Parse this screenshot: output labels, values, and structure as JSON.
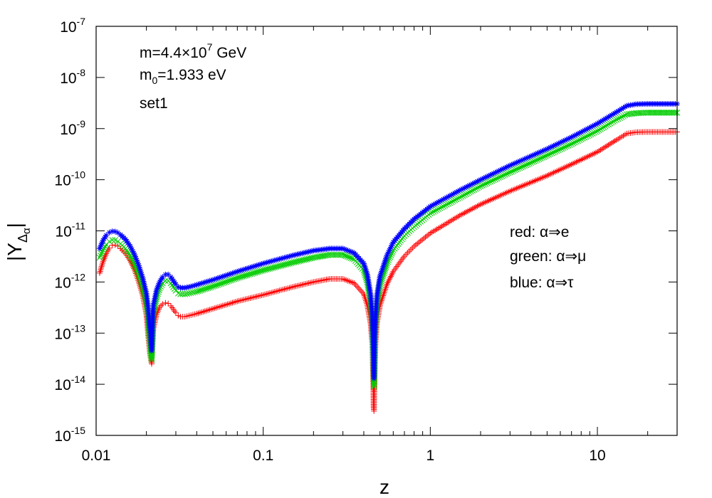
{
  "chart_data": {
    "type": "scatter",
    "title": "",
    "xlabel": "z",
    "ylabel": "|Y_Δα|",
    "xscale": "log",
    "yscale": "log",
    "xlim": [
      0.01,
      30
    ],
    "ylim": [
      1e-15,
      1e-07
    ],
    "x_ticks": [
      {
        "value": 0.01,
        "label": "0.01"
      },
      {
        "value": 0.1,
        "label": "0.1"
      },
      {
        "value": 1,
        "label": "1"
      },
      {
        "value": 10,
        "label": "10"
      }
    ],
    "y_ticks": [
      {
        "value": 1e-15,
        "base": "10",
        "exp": "-15"
      },
      {
        "value": 1e-14,
        "base": "10",
        "exp": "-14"
      },
      {
        "value": 1e-13,
        "base": "10",
        "exp": "-13"
      },
      {
        "value": 1e-12,
        "base": "10",
        "exp": "-12"
      },
      {
        "value": 1e-11,
        "base": "10",
        "exp": "-11"
      },
      {
        "value": 1e-10,
        "base": "10",
        "exp": "-10"
      },
      {
        "value": 1e-09,
        "base": "10",
        "exp": "-9"
      },
      {
        "value": 1e-08,
        "base": "10",
        "exp": "-8"
      },
      {
        "value": 1e-07,
        "base": "10",
        "exp": "-7"
      }
    ],
    "annotations": {
      "mass": "m=4.4×10",
      "mass_exp": "7",
      "mass_unit": " GeV",
      "m0_prefix": "m",
      "m0_sub": "0",
      "m0_value": "=1.933 eV",
      "set": "set1"
    },
    "legend": [
      {
        "label": "red: α⇒e",
        "color": "#ff0000"
      },
      {
        "label": "green: α⇒μ",
        "color": "#00cc00"
      },
      {
        "label": "blue: α⇒τ",
        "color": "#0000ff"
      }
    ],
    "series": [
      {
        "name": "red: α⇒e",
        "color": "#ff0000",
        "marker": "plus",
        "points": [
          [
            0.0105,
            1.5e-12
          ],
          [
            0.011,
            2.5e-12
          ],
          [
            0.0115,
            3.6e-12
          ],
          [
            0.012,
            4.6e-12
          ],
          [
            0.0125,
            5.2e-12
          ],
          [
            0.013,
            5.3e-12
          ],
          [
            0.0135,
            5e-12
          ],
          [
            0.014,
            4.5e-12
          ],
          [
            0.015,
            3.6e-12
          ],
          [
            0.016,
            2.6e-12
          ],
          [
            0.017,
            1.7e-12
          ],
          [
            0.018,
            1e-12
          ],
          [
            0.019,
            5.5e-13
          ],
          [
            0.02,
            2.3e-13
          ],
          [
            0.0205,
            9e-14
          ],
          [
            0.021,
            4e-14
          ],
          [
            0.0215,
            2.5e-14
          ],
          [
            0.022,
            1.2e-13
          ],
          [
            0.023,
            2.3e-13
          ],
          [
            0.024,
            3.2e-13
          ],
          [
            0.025,
            3.7e-13
          ],
          [
            0.026,
            3.9e-13
          ],
          [
            0.027,
            3.8e-13
          ],
          [
            0.028,
            3.4e-13
          ],
          [
            0.029,
            2.9e-13
          ],
          [
            0.03,
            2.5e-13
          ],
          [
            0.031,
            2.2e-13
          ],
          [
            0.032,
            2.1e-13
          ],
          [
            0.034,
            2.1e-13
          ],
          [
            0.036,
            2.2e-13
          ],
          [
            0.04,
            2.4e-13
          ],
          [
            0.05,
            3e-13
          ],
          [
            0.07,
            4.2e-13
          ],
          [
            0.1,
            5.6e-13
          ],
          [
            0.15,
            8e-13
          ],
          [
            0.2,
            1e-12
          ],
          [
            0.25,
            1.15e-12
          ],
          [
            0.3,
            1.15e-12
          ],
          [
            0.35,
            9.5e-13
          ],
          [
            0.4,
            5.8e-13
          ],
          [
            0.42,
            3.5e-13
          ],
          [
            0.44,
            1.5e-13
          ],
          [
            0.45,
            6e-14
          ],
          [
            0.455,
            1.5e-14
          ],
          [
            0.458,
            3.5e-15
          ],
          [
            0.46,
            3e-15
          ],
          [
            0.465,
            2e-14
          ],
          [
            0.47,
            6e-14
          ],
          [
            0.48,
            1.6e-13
          ],
          [
            0.5,
            3.5e-13
          ],
          [
            0.55,
            9e-13
          ],
          [
            0.6,
            1.6e-12
          ],
          [
            0.7,
            3.2e-12
          ],
          [
            0.8,
            5e-12
          ],
          [
            1.0,
            9e-12
          ],
          [
            1.5,
            2e-11
          ],
          [
            2,
            3.3e-11
          ],
          [
            3,
            6e-11
          ],
          [
            5,
            1.2e-10
          ],
          [
            7,
            2e-10
          ],
          [
            10,
            3.5e-10
          ],
          [
            13,
            6e-10
          ],
          [
            15,
            8e-10
          ],
          [
            17,
            8.5e-10
          ],
          [
            20,
            8.6e-10
          ],
          [
            30,
            8.6e-10
          ]
        ]
      },
      {
        "name": "green: α⇒μ",
        "color": "#00cc00",
        "marker": "cross",
        "points": [
          [
            0.0105,
            3e-12
          ],
          [
            0.011,
            4.2e-12
          ],
          [
            0.0115,
            5.4e-12
          ],
          [
            0.012,
            6.2e-12
          ],
          [
            0.0125,
            6.6e-12
          ],
          [
            0.013,
            6.6e-12
          ],
          [
            0.0135,
            6.2e-12
          ],
          [
            0.014,
            5.6e-12
          ],
          [
            0.015,
            4.5e-12
          ],
          [
            0.016,
            3.3e-12
          ],
          [
            0.017,
            2.2e-12
          ],
          [
            0.018,
            1.4e-12
          ],
          [
            0.019,
            8e-13
          ],
          [
            0.02,
            4e-13
          ],
          [
            0.0205,
            2e-13
          ],
          [
            0.021,
            6e-14
          ],
          [
            0.0215,
            3e-14
          ],
          [
            0.022,
            2.5e-13
          ],
          [
            0.023,
            5e-13
          ],
          [
            0.024,
            7.5e-13
          ],
          [
            0.025,
            9.5e-13
          ],
          [
            0.026,
            1.05e-12
          ],
          [
            0.027,
            1.05e-12
          ],
          [
            0.028,
            9.5e-13
          ],
          [
            0.029,
            8e-13
          ],
          [
            0.03,
            6.8e-13
          ],
          [
            0.031,
            6e-13
          ],
          [
            0.032,
            5.8e-13
          ],
          [
            0.034,
            5.8e-13
          ],
          [
            0.036,
            6e-13
          ],
          [
            0.04,
            6.5e-13
          ],
          [
            0.05,
            8.2e-13
          ],
          [
            0.07,
            1.2e-12
          ],
          [
            0.1,
            1.7e-12
          ],
          [
            0.15,
            2.4e-12
          ],
          [
            0.2,
            3e-12
          ],
          [
            0.25,
            3.4e-12
          ],
          [
            0.3,
            3.4e-12
          ],
          [
            0.35,
            2.8e-12
          ],
          [
            0.4,
            1.7e-12
          ],
          [
            0.42,
            1e-12
          ],
          [
            0.44,
            4e-13
          ],
          [
            0.45,
            1.5e-13
          ],
          [
            0.455,
            4e-14
          ],
          [
            0.458,
            1.5e-14
          ],
          [
            0.46,
            9e-15
          ],
          [
            0.465,
            5e-14
          ],
          [
            0.47,
            1.5e-13
          ],
          [
            0.48,
            4e-13
          ],
          [
            0.5,
            9e-13
          ],
          [
            0.55,
            2.3e-12
          ],
          [
            0.6,
            4.2e-12
          ],
          [
            0.7,
            8e-12
          ],
          [
            0.8,
            1.2e-11
          ],
          [
            1.0,
            2.2e-11
          ],
          [
            1.5,
            4.5e-11
          ],
          [
            2,
            7.5e-11
          ],
          [
            3,
            1.4e-10
          ],
          [
            5,
            3e-10
          ],
          [
            7,
            5e-10
          ],
          [
            10,
            9e-10
          ],
          [
            13,
            1.5e-09
          ],
          [
            15,
            1.9e-09
          ],
          [
            17,
            2e-09
          ],
          [
            20,
            2.05e-09
          ],
          [
            30,
            2.05e-09
          ]
        ]
      },
      {
        "name": "blue: α⇒τ",
        "color": "#0000ff",
        "marker": "star",
        "points": [
          [
            0.0105,
            4.5e-12
          ],
          [
            0.011,
            6.5e-12
          ],
          [
            0.0115,
            8.2e-12
          ],
          [
            0.012,
            9.3e-12
          ],
          [
            0.0125,
            9.8e-12
          ],
          [
            0.013,
            9.7e-12
          ],
          [
            0.0135,
            9.2e-12
          ],
          [
            0.014,
            8.4e-12
          ],
          [
            0.015,
            6.8e-12
          ],
          [
            0.016,
            5e-12
          ],
          [
            0.017,
            3.4e-12
          ],
          [
            0.018,
            2.1e-12
          ],
          [
            0.019,
            1.2e-12
          ],
          [
            0.02,
            6e-13
          ],
          [
            0.0205,
            3e-13
          ],
          [
            0.021,
            1.2e-13
          ],
          [
            0.0215,
            4.5e-14
          ],
          [
            0.022,
            3.5e-13
          ],
          [
            0.023,
            7e-13
          ],
          [
            0.024,
            1e-12
          ],
          [
            0.025,
            1.25e-12
          ],
          [
            0.026,
            1.4e-12
          ],
          [
            0.027,
            1.4e-12
          ],
          [
            0.028,
            1.25e-12
          ],
          [
            0.029,
            1.05e-12
          ],
          [
            0.03,
            9e-13
          ],
          [
            0.031,
            8e-13
          ],
          [
            0.032,
            7.7e-13
          ],
          [
            0.034,
            7.7e-13
          ],
          [
            0.036,
            8e-13
          ],
          [
            0.04,
            8.8e-13
          ],
          [
            0.05,
            1.1e-12
          ],
          [
            0.07,
            1.6e-12
          ],
          [
            0.1,
            2.3e-12
          ],
          [
            0.15,
            3.3e-12
          ],
          [
            0.2,
            4.1e-12
          ],
          [
            0.25,
            4.5e-12
          ],
          [
            0.3,
            4.5e-12
          ],
          [
            0.35,
            3.7e-12
          ],
          [
            0.4,
            2.3e-12
          ],
          [
            0.42,
            1.4e-12
          ],
          [
            0.44,
            5.5e-13
          ],
          [
            0.45,
            2e-13
          ],
          [
            0.455,
            6e-14
          ],
          [
            0.458,
            2e-14
          ],
          [
            0.46,
            1.3e-14
          ],
          [
            0.465,
            7e-14
          ],
          [
            0.47,
            2e-13
          ],
          [
            0.48,
            5.5e-13
          ],
          [
            0.5,
            1.3e-12
          ],
          [
            0.55,
            3.3e-12
          ],
          [
            0.6,
            6e-12
          ],
          [
            0.7,
            1.1e-11
          ],
          [
            0.8,
            1.7e-11
          ],
          [
            1.0,
            3e-11
          ],
          [
            1.5,
            6.2e-11
          ],
          [
            2,
            1e-10
          ],
          [
            3,
            1.9e-10
          ],
          [
            5,
            4e-10
          ],
          [
            7,
            6.8e-10
          ],
          [
            10,
            1.25e-09
          ],
          [
            13,
            2.1e-09
          ],
          [
            15,
            2.8e-09
          ],
          [
            17,
            3e-09
          ],
          [
            20,
            3.05e-09
          ],
          [
            30,
            3.05e-09
          ]
        ]
      }
    ]
  }
}
